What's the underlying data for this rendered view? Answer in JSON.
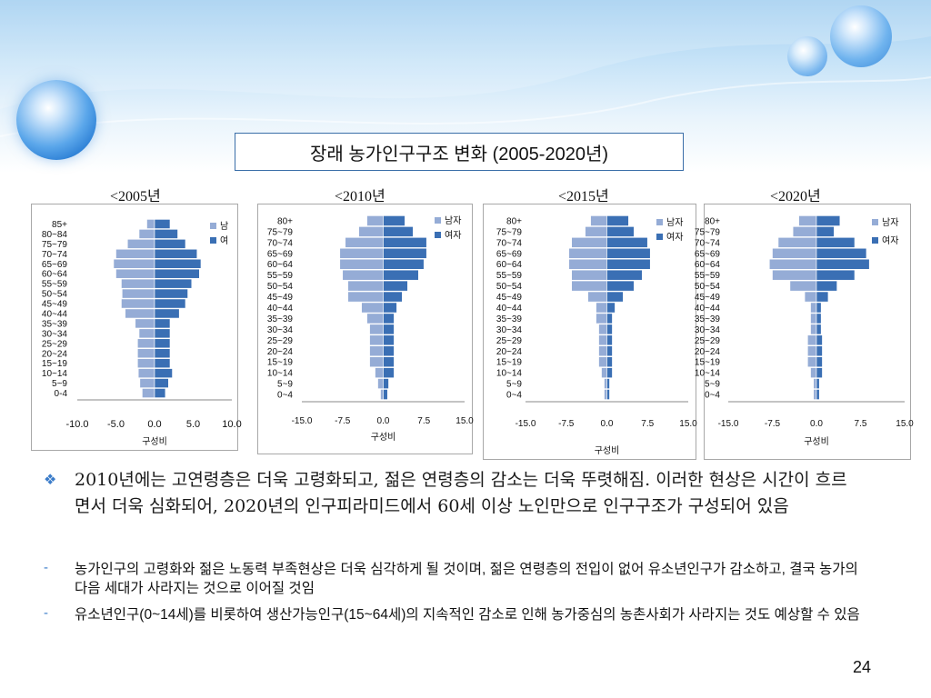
{
  "slide": {
    "title": "장래 농가인구구조 변화 (2005-2020년)",
    "page_number": "24",
    "colors": {
      "male": "#95acd6",
      "female": "#3a6fb4",
      "title_border": "#3a6ea8",
      "accent": "#3b7cc9"
    }
  },
  "chart_data": [
    {
      "type": "bar",
      "year_label": "<2005년",
      "caret": ">",
      "categories": [
        "85+",
        "80~84",
        "75~79",
        "70~74",
        "65~69",
        "60~64",
        "55~59",
        "50~54",
        "45~49",
        "40~44",
        "35~39",
        "30~34",
        "25~29",
        "20~24",
        "15~19",
        "10~14",
        "5~9",
        "0-4"
      ],
      "series": [
        {
          "name": "남",
          "values": [
            -1.0,
            -2.0,
            -3.5,
            -5.0,
            -5.3,
            -5.0,
            -4.3,
            -4.2,
            -4.3,
            -3.8,
            -2.5,
            -2.0,
            -2.2,
            -2.2,
            -2.2,
            -2.1,
            -1.9,
            -1.6
          ]
        },
        {
          "name": "여",
          "values": [
            2.0,
            3.0,
            4.0,
            5.5,
            6.0,
            5.8,
            4.8,
            4.3,
            4.0,
            3.2,
            2.0,
            2.0,
            2.0,
            2.0,
            2.0,
            2.3,
            1.8,
            1.4
          ]
        }
      ],
      "xlim": [
        -10,
        10
      ],
      "xticks": [
        "-10.0",
        "-5.0",
        "0.0",
        "5.0",
        "10.0"
      ],
      "xlabel": "구성비",
      "legend": "top-right"
    },
    {
      "type": "bar",
      "year_label": "<2010년",
      "caret": ">",
      "categories": [
        "80+",
        "75~79",
        "70~74",
        "65~69",
        "60~64",
        "55~59",
        "50~54",
        "45~49",
        "40~44",
        "35~39",
        "30~34",
        "25~29",
        "20~24",
        "15~19",
        "10~14",
        "5~9",
        "0~4"
      ],
      "series": [
        {
          "name": "남자",
          "values": [
            -3.0,
            -4.5,
            -7.0,
            -8.0,
            -8.0,
            -7.5,
            -6.5,
            -6.5,
            -4.0,
            -3.0,
            -2.5,
            -2.5,
            -2.5,
            -2.5,
            -1.5,
            -1.0,
            -0.5
          ]
        },
        {
          "name": "여자",
          "values": [
            4.0,
            5.5,
            8.0,
            8.0,
            7.5,
            6.5,
            4.5,
            3.5,
            2.5,
            2.0,
            2.0,
            2.0,
            2.0,
            2.0,
            2.0,
            1.0,
            0.8
          ]
        }
      ],
      "xlim": [
        -15,
        15
      ],
      "xticks": [
        "-15.0",
        "-7.5",
        "0.0",
        "7.5",
        "15.0"
      ],
      "xlabel": "구성비",
      "legend": "top-right"
    },
    {
      "type": "bar",
      "year_label": "<2015년",
      "caret": ">",
      "categories": [
        "80+",
        "75~79",
        "70~74",
        "65~69",
        "60~64",
        "55~59",
        "50~54",
        "45~49",
        "40~44",
        "35~39",
        "30~34",
        "25~29",
        "20~24",
        "15~19",
        "10~14",
        "5~9",
        "0~4"
      ],
      "series": [
        {
          "name": "남자",
          "values": [
            -3.0,
            -4.0,
            -6.5,
            -7.0,
            -7.0,
            -6.5,
            -6.5,
            -3.5,
            -2.0,
            -2.0,
            -1.5,
            -1.5,
            -1.5,
            -1.5,
            -1.0,
            -0.5,
            -0.5
          ]
        },
        {
          "name": "여자",
          "values": [
            4.0,
            5.0,
            7.5,
            8.0,
            8.0,
            6.5,
            5.0,
            3.0,
            1.5,
            1.0,
            1.0,
            1.0,
            1.0,
            1.0,
            1.0,
            0.5,
            0.5
          ]
        }
      ],
      "xlim": [
        -15,
        15
      ],
      "xticks": [
        "-15.0",
        "-7.5",
        "0.0",
        "7.5",
        "15.0"
      ],
      "xlabel": "구성비",
      "legend": "top-right"
    },
    {
      "type": "bar",
      "year_label": "<2020년",
      "caret": ">",
      "categories": [
        "80+",
        "75~79",
        "70~74",
        "65~69",
        "60~64",
        "55~59",
        "50~54",
        "45~49",
        "40~44",
        "35~39",
        "30~34",
        "25~29",
        "20~24",
        "15~19",
        "10~14",
        "5~9",
        "0~4"
      ],
      "series": [
        {
          "name": "남자",
          "values": [
            -3.0,
            -4.0,
            -6.5,
            -7.5,
            -8.0,
            -7.5,
            -4.5,
            -2.0,
            -1.0,
            -1.0,
            -1.0,
            -1.5,
            -1.5,
            -1.5,
            -1.0,
            -0.5,
            -0.5
          ]
        },
        {
          "name": "여자",
          "values": [
            4.0,
            3.0,
            6.5,
            8.5,
            9.0,
            6.5,
            3.5,
            2.0,
            0.8,
            0.8,
            0.8,
            1.0,
            1.0,
            1.0,
            1.0,
            0.5,
            0.5
          ]
        }
      ],
      "xlim": [
        -15,
        15
      ],
      "xticks": [
        "-15.0",
        "-7.5",
        "0.0",
        "7.5",
        "15.0"
      ],
      "xlabel": "구성비",
      "legend": "top-right"
    }
  ],
  "bullets": {
    "main_icon": "diamond-bullet-icon",
    "main": "2010년에는 고연령층은 더욱 고령화되고, 젊은 연령층의 감소는 더욱 뚜렷해짐. 이러한 현상은 시간이 흐르면서 더욱 심화되어, 2020년의 인구피라미드에서 60세 이상 노인만으로 인구구조가 구성되어 있음",
    "sub": [
      {
        "dash": "-",
        "text": "농가인구의 고령화와 젊은 노동력 부족현상은 더욱 심각하게 될 것이며, 젊은 연령층의 전입이 없어 유소년인구가 감소하고, 결국 농가의 다음 세대가 사라지는 것으로 이어질 것임"
      },
      {
        "dash": "-",
        "text": "유소년인구(0~14세)를 비롯하여 생산가능인구(15~64세)의 지속적인 감소로 인해 농가중심의 농촌사회가 사라지는 것도 예상할 수 있음"
      }
    ]
  }
}
